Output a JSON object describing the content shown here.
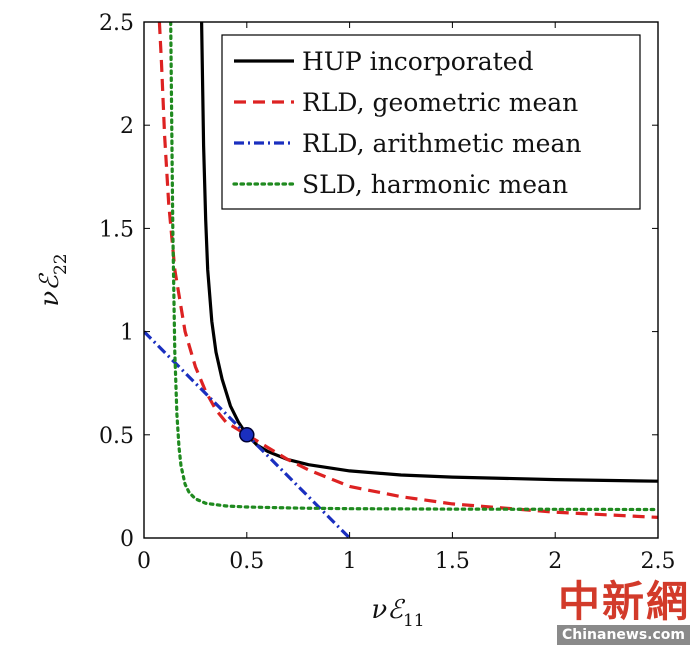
{
  "chart_data": {
    "type": "line",
    "xlabel": "νℰ",
    "xlabel_sub": "11",
    "ylabel": "νℰ",
    "ylabel_sub": "22",
    "xlim": [
      0,
      2.5
    ],
    "ylim": [
      0,
      2.5
    ],
    "x_ticks": [
      0,
      0.5,
      1,
      1.5,
      2,
      2.5
    ],
    "x_tick_labels": [
      "0",
      "0.5",
      "1",
      "1.5",
      "2",
      "2.5"
    ],
    "y_ticks": [
      0,
      0.5,
      1,
      1.5,
      2,
      2.5
    ],
    "y_tick_labels": [
      "0",
      "0.5",
      "1",
      "1.5",
      "2",
      "2.5"
    ],
    "grid": false,
    "legend_position": "top-right",
    "series": [
      {
        "name": "HUP incorporated",
        "color": "#000000",
        "style": "solid",
        "x": [
          0.28,
          0.29,
          0.3,
          0.31,
          0.33,
          0.35,
          0.38,
          0.42,
          0.46,
          0.5,
          0.55,
          0.6,
          0.7,
          0.8,
          1.0,
          1.25,
          1.5,
          2.0,
          2.5
        ],
        "y": [
          2.5,
          1.9,
          1.54,
          1.3,
          1.05,
          0.9,
          0.77,
          0.64,
          0.56,
          0.5,
          0.45,
          0.42,
          0.38,
          0.355,
          0.325,
          0.305,
          0.295,
          0.283,
          0.275
        ]
      },
      {
        "name": "RLD, geometric mean",
        "color": "#dd2222",
        "style": "dashed",
        "x": [
          0.075,
          0.085,
          0.1,
          0.12,
          0.15,
          0.2,
          0.25,
          0.3,
          0.35,
          0.4,
          0.5,
          0.6,
          0.7,
          0.8,
          1.0,
          1.25,
          1.5,
          2.0,
          2.5
        ],
        "y": [
          2.5,
          2.3,
          1.95,
          1.62,
          1.3,
          1.0,
          0.83,
          0.71,
          0.62,
          0.56,
          0.5,
          0.44,
          0.38,
          0.33,
          0.25,
          0.2,
          0.165,
          0.125,
          0.1
        ]
      },
      {
        "name": "RLD, arithmetic mean",
        "color": "#1a2fbf",
        "style": "dashdot",
        "x": [
          0,
          0.5,
          1.0
        ],
        "y": [
          1.0,
          0.5,
          0.0
        ]
      },
      {
        "name": "SLD, harmonic mean",
        "color": "#1f8a1f",
        "style": "dotted",
        "x": [
          0.13,
          0.14,
          0.15,
          0.16,
          0.17,
          0.18,
          0.2,
          0.22,
          0.25,
          0.3,
          0.4,
          0.5,
          0.75,
          1.0,
          1.5,
          2.0,
          2.5
        ],
        "y": [
          2.5,
          1.5,
          0.9,
          0.6,
          0.44,
          0.35,
          0.26,
          0.22,
          0.19,
          0.168,
          0.155,
          0.15,
          0.145,
          0.142,
          0.14,
          0.139,
          0.138
        ]
      }
    ],
    "markers": [
      {
        "x": 0.5,
        "y": 0.5,
        "color": "#1a2fbf"
      }
    ]
  },
  "watermark": {
    "chinese": "中新網",
    "english": "Chinanews.com"
  }
}
